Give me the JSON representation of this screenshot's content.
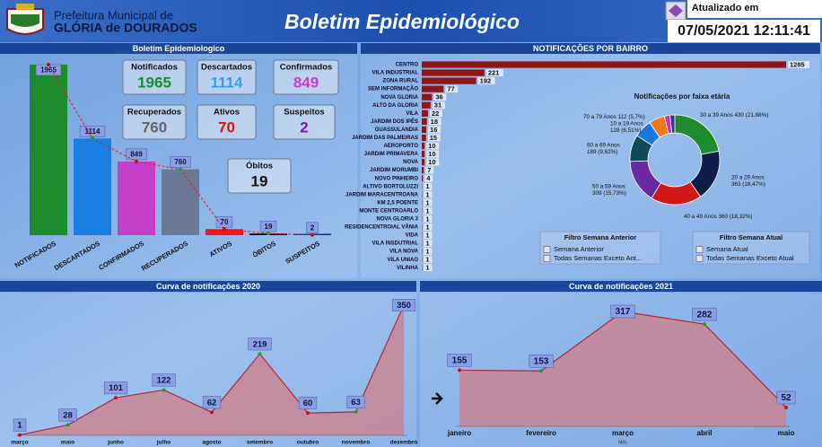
{
  "header": {
    "org_line1": "Prefeitura Municipal de",
    "org_line2": "GLÓRIA de DOURADOS",
    "title": "Boletim Epidemiológico",
    "updated_label": "Atualizado em",
    "updated_at": "07/05/2021 12:11:41"
  },
  "kpis": [
    {
      "label": "Notificados",
      "value": 1965,
      "color": "#1e8c2e"
    },
    {
      "label": "Descartados",
      "value": 1114,
      "color": "#3a9ee6"
    },
    {
      "label": "Confirmados",
      "value": 849,
      "color": "#c43ec8"
    },
    {
      "label": "Recuperados",
      "value": 760,
      "color": "#666666"
    },
    {
      "label": "Ativos",
      "value": 70,
      "color": "#e01010"
    },
    {
      "label": "Suspeitos",
      "value": 2,
      "color": "#7a1a9a"
    },
    {
      "label": "Óbitos",
      "value": 19,
      "color": "#111111"
    }
  ],
  "filters": [
    {
      "title": "Filtro Semana Anterior",
      "options": [
        "Semana Anterior",
        "Todas Semanas Exceto Ant..."
      ]
    },
    {
      "title": "Filtro Semana Atual",
      "options": [
        "Semana Atual",
        "Todas Semanas Exceto Atual"
      ]
    }
  ],
  "chart_data": [
    {
      "type": "bar",
      "title": "Boletim Epidemiologico",
      "categories": [
        "NOTIFICADOS",
        "DESCARTADOS",
        "CONFIRMADOS",
        "RECUPERADOS",
        "ATIVOS",
        "ÓBITOS",
        "SUSPEITOS"
      ],
      "values": [
        1965,
        1114,
        849,
        760,
        70,
        19,
        2
      ],
      "colors": [
        "#1e8c2e",
        "#1a7fe0",
        "#c43ec8",
        "#6a7a94",
        "#f01818",
        "#111111",
        "#1a2a8a"
      ],
      "trend_line": {
        "color": "#e02020",
        "dashed": true
      }
    },
    {
      "type": "bar",
      "orientation": "horizontal",
      "title": "NOTIFICAÇÕES POR BAIRRO",
      "color": "#8e1616",
      "categories": [
        "CENTRO",
        "VILA INDUSTRIAL",
        "ZONA RURAL",
        "SEM INFORMAÇÃO",
        "NOVA GLORIA",
        "ALTO DA GLORIA",
        "VILA",
        "JARDIM DOS IPÊS",
        "GUASSULANDIA",
        "JARDIM DAS PALMEIRAS",
        "AEROPORTO",
        "JARDIM PRIMAVERA",
        "NOVA",
        "JARDIM MORUMBI",
        "NOVO PINHEIRO",
        "ALTIVO BORTOLUZZI",
        "JARDIM MARACENTROANA",
        "KM 2,5 POENTE",
        "MONTE CENTROARLO",
        "NOVA GLORIA 3",
        "RESIDENCENTROIAL VÂNIA",
        "VIDA",
        "VILA INSDUTRIAL",
        "VILA NOVA",
        "VILA UNIAO",
        "VILINHA"
      ],
      "values": [
        1285,
        221,
        192,
        77,
        36,
        31,
        22,
        18,
        16,
        15,
        10,
        10,
        10,
        7,
        4,
        1,
        1,
        1,
        1,
        1,
        1,
        1,
        1,
        1,
        1,
        1
      ]
    },
    {
      "type": "pie",
      "donut": true,
      "title": "Notificações por faixa etária",
      "categories": [
        "30 a 39 Anos",
        "20 a 29 Anos",
        "40 a 49 Anos",
        "50 a 59 Anos",
        "60 a 69 Anos",
        "10 a 19 Anos",
        "70 a 79 Anos",
        null,
        null
      ],
      "values": [
        430,
        363,
        360,
        309,
        189,
        128,
        112,
        40,
        34
      ],
      "value_labels": [
        "430 (21,88%)",
        "363 (18,47%)",
        "360 (18,32%)",
        "309 (15,73%)",
        "189 (9,62%)",
        "128 (6,51%)",
        "112 (5,7%)",
        null,
        null
      ],
      "colors": [
        "#1e8c2e",
        "#0e1e4a",
        "#d01818",
        "#6a2aa0",
        "#0e4a5a",
        "#1a78d8",
        "#f07818",
        "#d030c0",
        "#2a3a8a"
      ]
    },
    {
      "type": "area",
      "title": "Curva de notificações 2020",
      "categories": [
        "março",
        "maio",
        "junho",
        "julho",
        "agosto",
        "setembro",
        "outubro",
        "novembro",
        "dezembro"
      ],
      "values": [
        1,
        28,
        101,
        122,
        62,
        219,
        60,
        63,
        350
      ],
      "color": "#c98594"
    },
    {
      "type": "area",
      "title": "Curva de notificações 2021",
      "x_label": "Mês",
      "categories": [
        "janeiro",
        "fevereiro",
        "março",
        "abril",
        "maio"
      ],
      "values": [
        155,
        153,
        317,
        282,
        52
      ],
      "color": "#c98594"
    }
  ]
}
